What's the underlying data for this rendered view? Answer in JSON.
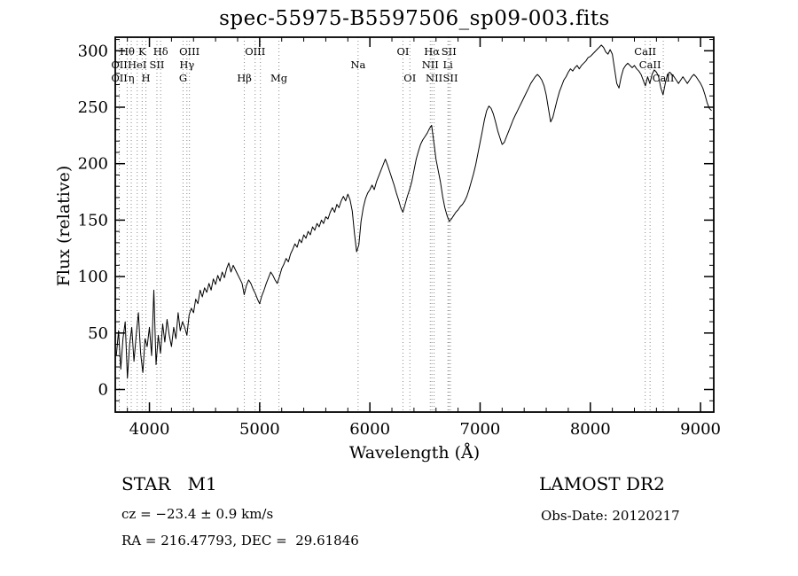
{
  "title": "spec-55975-B5597506_sp09-003.fits",
  "annotations": {
    "class_label": "STAR   M1",
    "survey": "LAMOST DR2",
    "cz": "cz = −23.4 ± 0.9 km/s",
    "obs_date": "Obs-Date: 20120217",
    "radec": "RA = 216.47793, DEC =  29.61846"
  },
  "chart_data": {
    "type": "line",
    "title": "spec-55975-B5597506_sp09-003.fits",
    "xlabel": "Wavelength (Å)",
    "ylabel": "Flux (relative)",
    "xlim": [
      3690,
      9120
    ],
    "ylim": [
      -20,
      312
    ],
    "x_ticks": [
      4000,
      5000,
      6000,
      7000,
      8000,
      9000
    ],
    "y_ticks": [
      0,
      50,
      100,
      150,
      200,
      250,
      300
    ],
    "grid": false,
    "line_color": "#000000",
    "marker_line_color": "#8a8a8a",
    "x_start": 3700,
    "x_step": 20,
    "flux": [
      30,
      52,
      18,
      45,
      60,
      10,
      40,
      55,
      25,
      48,
      68,
      32,
      15,
      45,
      38,
      55,
      30,
      88,
      22,
      48,
      32,
      58,
      42,
      62,
      48,
      38,
      55,
      45,
      68,
      52,
      60,
      55,
      48,
      66,
      72,
      68,
      80,
      76,
      88,
      82,
      90,
      86,
      94,
      88,
      98,
      93,
      101,
      96,
      104,
      99,
      107,
      112,
      104,
      110,
      106,
      102,
      98,
      94,
      84,
      92,
      97,
      94,
      89,
      85,
      80,
      76,
      83,
      88,
      94,
      99,
      104,
      101,
      97,
      94,
      100,
      107,
      111,
      116,
      113,
      120,
      124,
      129,
      126,
      133,
      130,
      137,
      134,
      140,
      137,
      144,
      141,
      147,
      144,
      150,
      147,
      153,
      151,
      157,
      161,
      157,
      164,
      161,
      167,
      171,
      167,
      173,
      168,
      158,
      138,
      122,
      128,
      149,
      161,
      169,
      174,
      177,
      181,
      177,
      184,
      189,
      194,
      199,
      204,
      199,
      193,
      187,
      181,
      174,
      168,
      161,
      157,
      164,
      171,
      177,
      184,
      194,
      204,
      211,
      217,
      221,
      224,
      227,
      231,
      234,
      219,
      204,
      194,
      184,
      171,
      161,
      154,
      149,
      151,
      154,
      157,
      159,
      162,
      164,
      167,
      171,
      177,
      184,
      191,
      199,
      209,
      219,
      229,
      239,
      247,
      251,
      249,
      244,
      237,
      229,
      223,
      217,
      219,
      224,
      229,
      234,
      239,
      243,
      247,
      251,
      255,
      259,
      263,
      267,
      271,
      274,
      277,
      279,
      277,
      274,
      269,
      261,
      249,
      237,
      241,
      249,
      257,
      264,
      269,
      274,
      277,
      281,
      284,
      282,
      285,
      287,
      284,
      287,
      289,
      291,
      294,
      295,
      297,
      299,
      301,
      303,
      305,
      303,
      299,
      297,
      301,
      297,
      284,
      271,
      267,
      277,
      284,
      287,
      289,
      287,
      285,
      287,
      284,
      282,
      279,
      274,
      269,
      277,
      271,
      279,
      283,
      281,
      277,
      267,
      261,
      271,
      279,
      281,
      279,
      277,
      274,
      271,
      274,
      277,
      274,
      271,
      274,
      277,
      279,
      277,
      274,
      271,
      267,
      261,
      254,
      249,
      247
    ],
    "spectral_lines": [
      {
        "wl": 3727,
        "label": "OII",
        "row": 2
      },
      {
        "wl": 3727,
        "label": "OII",
        "row": 3
      },
      {
        "wl": 3798,
        "label": "Hθ",
        "row": 1
      },
      {
        "wl": 3835,
        "label": "η",
        "row": 3
      },
      {
        "wl": 3889,
        "label": "HeI",
        "row": 2
      },
      {
        "wl": 3934,
        "label": "K",
        "row": 1
      },
      {
        "wl": 3968,
        "label": "H",
        "row": 3
      },
      {
        "wl": 4068,
        "label": "SII",
        "row": 2
      },
      {
        "wl": 4102,
        "label": "Hδ",
        "row": 1
      },
      {
        "wl": 4305,
        "label": "G",
        "row": 3
      },
      {
        "wl": 4340,
        "label": "Hγ",
        "row": 2
      },
      {
        "wl": 4363,
        "label": "OIII",
        "row": 1
      },
      {
        "wl": 4861,
        "label": "Hβ",
        "row": 3
      },
      {
        "wl": 4959,
        "label": "OIII",
        "row": 1
      },
      {
        "wl": 5007,
        "label": "",
        "row": 1
      },
      {
        "wl": 5175,
        "label": "Mg",
        "row": 3
      },
      {
        "wl": 5893,
        "label": "Na",
        "row": 2
      },
      {
        "wl": 6300,
        "label": "OI",
        "row": 1
      },
      {
        "wl": 6363,
        "label": "OI",
        "row": 3
      },
      {
        "wl": 6548,
        "label": "NII",
        "row": 2
      },
      {
        "wl": 6563,
        "label": "Hα",
        "row": 1
      },
      {
        "wl": 6583,
        "label": "NII",
        "row": 3
      },
      {
        "wl": 6708,
        "label": "Li",
        "row": 2
      },
      {
        "wl": 6717,
        "label": "SII",
        "row": 1
      },
      {
        "wl": 6731,
        "label": "SII",
        "row": 3
      },
      {
        "wl": 8498,
        "label": "CaII",
        "row": 1
      },
      {
        "wl": 8542,
        "label": "CaII",
        "row": 2
      },
      {
        "wl": 8662,
        "label": "CaII",
        "row": 3
      }
    ]
  }
}
